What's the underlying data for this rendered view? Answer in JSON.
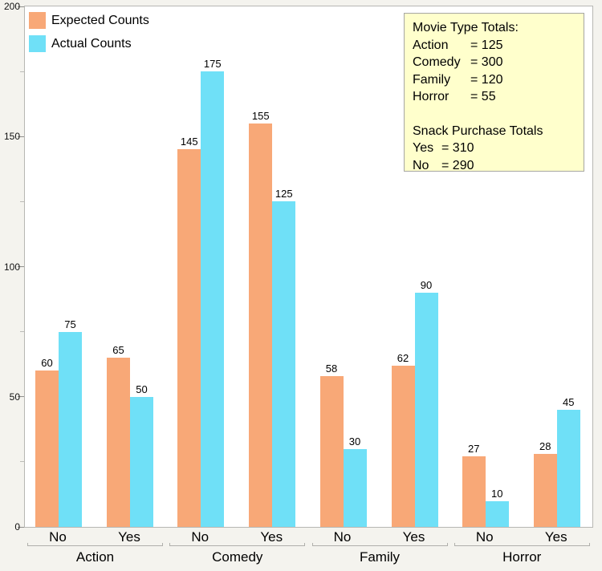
{
  "info_box": {
    "title": "Movie Type Totals:",
    "movie_rows": [
      {
        "label": "Action",
        "value": "=  125"
      },
      {
        "label": "Comedy",
        "value": "=  300"
      },
      {
        "label": "Family",
        "value": "=  120"
      },
      {
        "label": "Horror",
        "value": "=  55"
      }
    ],
    "subtitle": "Snack Purchase Totals",
    "snack_rows": [
      {
        "label": "Yes",
        "value": "=  310"
      },
      {
        "label": "No",
        "value": "=  290"
      }
    ]
  },
  "colors": {
    "expected_bar": "#F8A877",
    "actual_bar": "#6FE0F7",
    "page_background": "#F4F3EE",
    "plot_background": "#FFFFFF",
    "info_box_background": "#FFFFCC",
    "axis_line": "#B7B7B3"
  },
  "chart_data": {
    "type": "bar",
    "variant": "grouped",
    "title": "",
    "xlabel": "",
    "ylabel": "",
    "ylim": [
      0,
      200
    ],
    "grid": false,
    "legend_position": "top-left",
    "yticks": [
      0,
      50,
      100,
      150,
      200
    ],
    "minor_yticks": [
      25,
      75,
      125,
      175
    ],
    "group_labels": [
      "Action",
      "Comedy",
      "Family",
      "Horror"
    ],
    "categories": [
      "No",
      "Yes"
    ],
    "series": [
      {
        "name": "Expected Counts",
        "color": "#F8A877",
        "values": [
          [
            60,
            65
          ],
          [
            145,
            155
          ],
          [
            58,
            62
          ],
          [
            27,
            28
          ]
        ]
      },
      {
        "name": "Actual Counts",
        "color": "#6FE0F7",
        "values": [
          [
            75,
            50
          ],
          [
            175,
            125
          ],
          [
            30,
            90
          ],
          [
            10,
            45
          ]
        ]
      }
    ]
  }
}
